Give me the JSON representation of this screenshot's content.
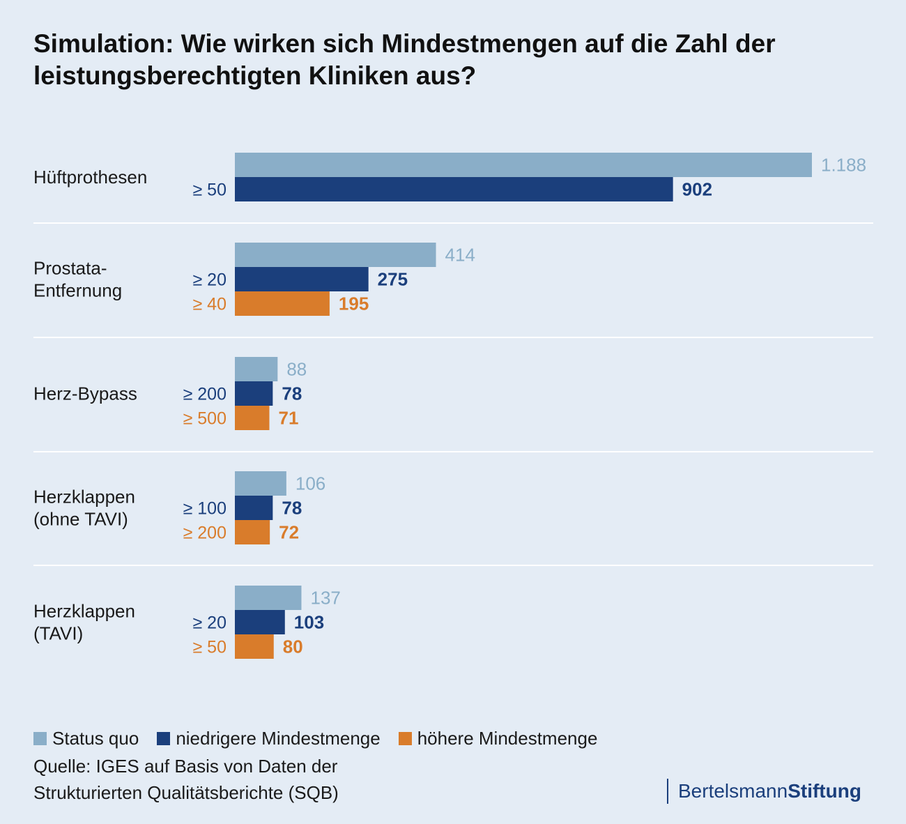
{
  "title_lines": [
    "Simulation: Wie wirken sich Mindestmengen auf die Zahl der",
    "leistungsberechtigten Kliniken aus?"
  ],
  "colors": {
    "status_quo": "#8aaec8",
    "niedrig": "#1b3f7c",
    "hoch": "#d97c2b",
    "divider": "#ffffff",
    "text": "#1a1a1a"
  },
  "legend": {
    "status_quo": "Status quo",
    "niedrig": "niedrigere Mindestmenge",
    "hoch": "höhere Mindestmenge"
  },
  "source": {
    "line1": "Quelle: IGES auf Basis von Daten der",
    "line2": "Strukturierten Qualitätsberichte (SQB)"
  },
  "logo": {
    "part1": "Bertelsmann",
    "part2": "Stiftung"
  },
  "chart_data": {
    "type": "bar",
    "orientation": "horizontal",
    "title": "Simulation: Wie wirken sich Mindestmengen auf die Zahl der leistungsberechtigten Kliniken aus?",
    "xlim": [
      0,
      1188
    ],
    "grid": false,
    "legend_position": "bottom-left",
    "series_names": [
      "Status quo",
      "niedrigere Mindestmenge",
      "höhere Mindestmenge"
    ],
    "groups": [
      {
        "label_lines": [
          "Hüftprothesen"
        ],
        "bars": [
          {
            "series": "status_quo",
            "threshold": "",
            "value": 1188,
            "value_label": "1.188"
          },
          {
            "series": "niedrig",
            "threshold": "≥ 50",
            "value": 902,
            "value_label": "902"
          }
        ]
      },
      {
        "label_lines": [
          "Prostata-",
          "Entfernung"
        ],
        "bars": [
          {
            "series": "status_quo",
            "threshold": "",
            "value": 414,
            "value_label": "414"
          },
          {
            "series": "niedrig",
            "threshold": "≥ 20",
            "value": 275,
            "value_label": "275"
          },
          {
            "series": "hoch",
            "threshold": "≥ 40",
            "value": 195,
            "value_label": "195"
          }
        ]
      },
      {
        "label_lines": [
          "Herz-Bypass"
        ],
        "bars": [
          {
            "series": "status_quo",
            "threshold": "",
            "value": 88,
            "value_label": "88"
          },
          {
            "series": "niedrig",
            "threshold": "≥ 200",
            "value": 78,
            "value_label": "78"
          },
          {
            "series": "hoch",
            "threshold": "≥ 500",
            "value": 71,
            "value_label": "71"
          }
        ]
      },
      {
        "label_lines": [
          "Herzklappen",
          " (ohne TAVI)"
        ],
        "bars": [
          {
            "series": "status_quo",
            "threshold": "",
            "value": 106,
            "value_label": "106"
          },
          {
            "series": "niedrig",
            "threshold": "≥ 100",
            "value": 78,
            "value_label": "78"
          },
          {
            "series": "hoch",
            "threshold": "≥ 200",
            "value": 72,
            "value_label": "72"
          }
        ]
      },
      {
        "label_lines": [
          "Herzklappen",
          "(TAVI)"
        ],
        "bars": [
          {
            "series": "status_quo",
            "threshold": "",
            "value": 137,
            "value_label": "137"
          },
          {
            "series": "niedrig",
            "threshold": "≥ 20",
            "value": 103,
            "value_label": "103"
          },
          {
            "series": "hoch",
            "threshold": "≥ 50",
            "value": 80,
            "value_label": "80"
          }
        ]
      }
    ]
  }
}
